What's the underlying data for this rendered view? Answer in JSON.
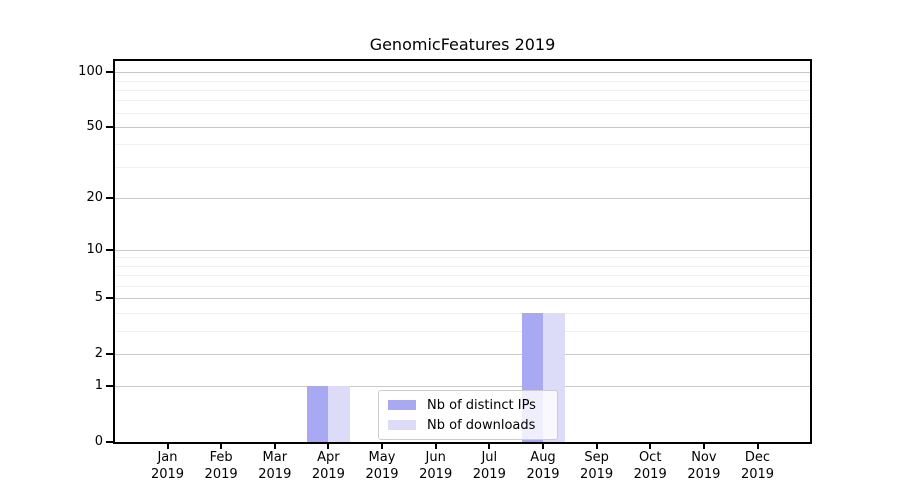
{
  "chart_data": {
    "type": "bar",
    "title": "GenomicFeatures 2019",
    "categories": [
      "Jan",
      "Feb",
      "Mar",
      "Apr",
      "May",
      "Jun",
      "Jul",
      "Aug",
      "Sep",
      "Oct",
      "Nov",
      "Dec"
    ],
    "year_label": "2019",
    "series": [
      {
        "name": "Nb of distinct IPs",
        "color": "#a9a9f3",
        "values": [
          0,
          0,
          0,
          1,
          0,
          0,
          0,
          4,
          0,
          0,
          0,
          0
        ]
      },
      {
        "name": "Nb of downloads",
        "color": "#dcdcf8",
        "values": [
          0,
          0,
          0,
          1,
          0,
          0,
          0,
          4,
          0,
          0,
          0,
          0
        ]
      }
    ],
    "xlabel": "",
    "ylabel": "",
    "y_axis": {
      "scale": "log1p",
      "min": 0,
      "max": 115,
      "major_ticks": [
        0,
        1,
        2,
        5,
        10,
        20,
        50,
        100
      ],
      "minor_ticks": [
        3,
        4,
        6,
        7,
        8,
        9,
        30,
        40,
        60,
        70,
        80,
        90
      ]
    },
    "grid": "horizontal",
    "legend_position": "lower-center-inside"
  }
}
